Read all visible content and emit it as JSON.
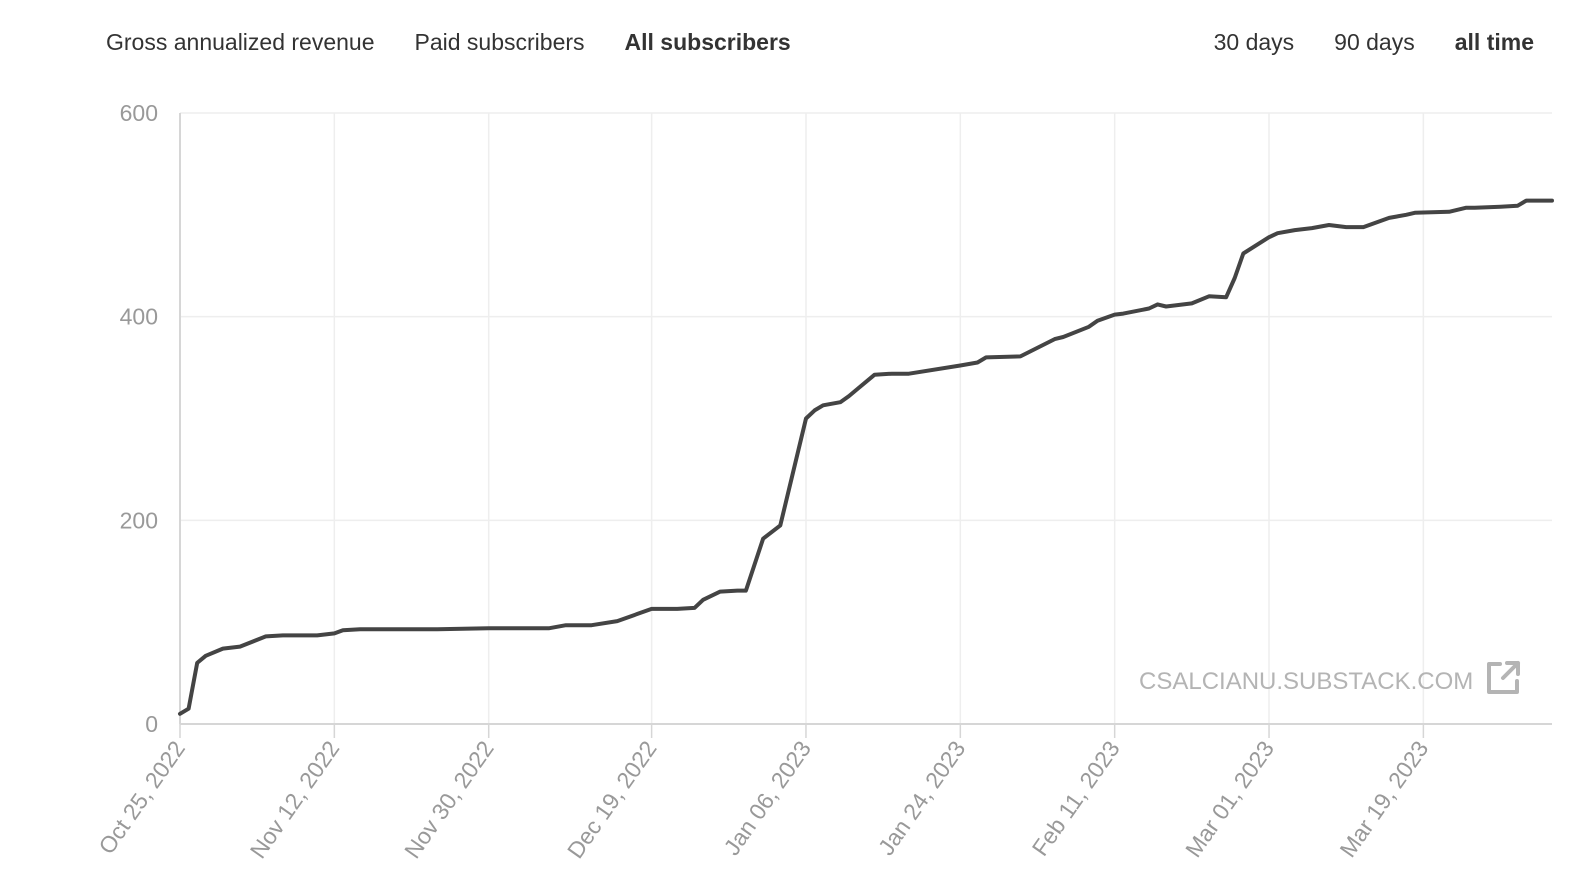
{
  "metric_tabs": [
    {
      "label": "Gross annualized revenue",
      "active": false
    },
    {
      "label": "Paid subscribers",
      "active": false
    },
    {
      "label": "All subscribers",
      "active": true
    }
  ],
  "range_tabs": [
    {
      "label": "30 days",
      "active": false
    },
    {
      "label": "90 days",
      "active": false
    },
    {
      "label": "all time",
      "active": true
    }
  ],
  "watermark": {
    "text": "CSALCIANU.SUBSTACK.COM",
    "icon": "external-link-icon"
  },
  "colors": {
    "line": "#444444",
    "grid": "#eeeeee",
    "axis": "#d6d6d6",
    "tick_text": "#999999",
    "watermark": "#b4b4b4"
  },
  "chart_data": {
    "type": "line",
    "ylim": [
      0,
      600
    ],
    "yticks": [
      0,
      200,
      400,
      600
    ],
    "xlim": [
      "2022-10-25",
      "2023-04-03"
    ],
    "xticks": [
      "2022-10-25",
      "2022-11-12",
      "2022-11-30",
      "2022-12-19",
      "2023-01-06",
      "2023-01-24",
      "2023-02-11",
      "2023-03-01",
      "2023-03-19"
    ],
    "xtick_labels": [
      "Oct 25, 2022",
      "Nov 12, 2022",
      "Nov 30, 2022",
      "Dec 19, 2022",
      "Jan 06, 2023",
      "Jan 24, 2023",
      "Feb 11, 2023",
      "Mar 01, 2023",
      "Mar 19, 2023"
    ],
    "grid": true,
    "series": [
      {
        "x": [
          "2022-10-25",
          "2022-10-26",
          "2022-10-27",
          "2022-10-28",
          "2022-10-30",
          "2022-11-01",
          "2022-11-04",
          "2022-11-06",
          "2022-11-08",
          "2022-11-10",
          "2022-11-12",
          "2022-11-13",
          "2022-11-15",
          "2022-11-21",
          "2022-11-24",
          "2022-11-30",
          "2022-12-02",
          "2022-12-07",
          "2022-12-09",
          "2022-12-12",
          "2022-12-15",
          "2022-12-19",
          "2022-12-22",
          "2022-12-24",
          "2022-12-25",
          "2022-12-27",
          "2022-12-29",
          "2022-12-30",
          "2023-01-01",
          "2023-01-03",
          "2023-01-06",
          "2023-01-07",
          "2023-01-08",
          "2023-01-10",
          "2023-01-11",
          "2023-01-12",
          "2023-01-14",
          "2023-01-16",
          "2023-01-18",
          "2023-01-24",
          "2023-01-26",
          "2023-01-27",
          "2023-01-31",
          "2023-02-04",
          "2023-02-05",
          "2023-02-08",
          "2023-02-09",
          "2023-02-11",
          "2023-02-12",
          "2023-02-15",
          "2023-02-16",
          "2023-02-17",
          "2023-02-20",
          "2023-02-22",
          "2023-02-24",
          "2023-02-25",
          "2023-02-26",
          "2023-03-01",
          "2023-03-02",
          "2023-03-04",
          "2023-03-06",
          "2023-03-08",
          "2023-03-10",
          "2023-03-12",
          "2023-03-15",
          "2023-03-17",
          "2023-03-18",
          "2023-03-22",
          "2023-03-24",
          "2023-03-25",
          "2023-03-28",
          "2023-03-30",
          "2023-03-31",
          "2023-04-03"
        ],
        "values": [
          10,
          15,
          60,
          67,
          74,
          76,
          86,
          87,
          87,
          87,
          89,
          92,
          93,
          93,
          93,
          94,
          94,
          94,
          97,
          97,
          101,
          113,
          113,
          114,
          122,
          130,
          131,
          131,
          182,
          195,
          300,
          308,
          313,
          316,
          322,
          329,
          343,
          344,
          344,
          352,
          355,
          360,
          361,
          378,
          380,
          390,
          396,
          402,
          403,
          408,
          412,
          410,
          413,
          420,
          419,
          438,
          462,
          478,
          482,
          485,
          487,
          490,
          488,
          488,
          497,
          500,
          502,
          503,
          507,
          507,
          508,
          509,
          514,
          514
        ]
      }
    ]
  }
}
